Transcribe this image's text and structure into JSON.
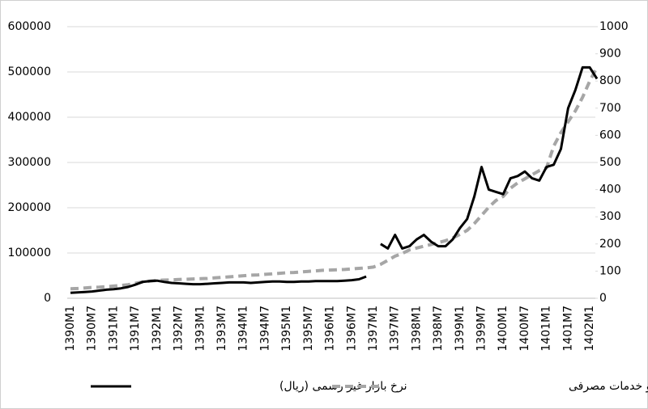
{
  "chart_data": {
    "type": "line",
    "categories": [
      "1390M1",
      null,
      null,
      "1390M7",
      null,
      null,
      "1391M1",
      null,
      null,
      "1391M7",
      null,
      null,
      "1392M1",
      null,
      null,
      "1392M7",
      null,
      null,
      "1393M1",
      null,
      null,
      "1393M7",
      null,
      null,
      "1394M1",
      null,
      null,
      "1394M7",
      null,
      null,
      "1395M1",
      null,
      null,
      "1395M7",
      null,
      null,
      "1396M1",
      null,
      null,
      "1396M7",
      null,
      null,
      "1397M1",
      null,
      null,
      "1397M7",
      null,
      null,
      "1398M1",
      null,
      null,
      "1398M7",
      null,
      null,
      "1399M1",
      null,
      null,
      "1399M7",
      null,
      null,
      "1400M1",
      null,
      null,
      "1400M7",
      null,
      null,
      "1401M1",
      null,
      null,
      "1401M7",
      null,
      null,
      "1402M1",
      null
    ],
    "series": [
      {
        "name": "نرخ بازار غیر رسمی (ریال)",
        "color": "#000000",
        "axis": "y",
        "values": [
          12000,
          13000,
          14000,
          15000,
          17000,
          19000,
          20000,
          22000,
          25000,
          30000,
          36000,
          38000,
          39000,
          36000,
          34000,
          33000,
          32000,
          31000,
          31000,
          32000,
          33000,
          34000,
          35000,
          35000,
          35000,
          34000,
          35000,
          36000,
          37000,
          37000,
          36000,
          36000,
          37000,
          37000,
          38000,
          38000,
          38000,
          38000,
          39000,
          40000,
          42000,
          48000,
          null,
          120000,
          110000,
          140000,
          110000,
          115000,
          130000,
          140000,
          125000,
          115000,
          115000,
          130000,
          155000,
          175000,
          225000,
          290000,
          240000,
          235000,
          230000,
          265000,
          270000,
          280000,
          265000,
          260000,
          290000,
          295000,
          330000,
          420000,
          460000,
          510000,
          510000,
          485000
        ]
      },
      {
        "name": "شاخص قیمت کالاها و خدمات مصرفی",
        "color": "#a6a6a6",
        "axis": "y2",
        "dashed": true,
        "values": [
          35,
          36,
          38,
          40,
          41,
          43,
          45,
          47,
          50,
          55,
          60,
          63,
          66,
          67,
          68,
          69,
          70,
          71,
          72,
          73,
          75,
          77,
          79,
          81,
          83,
          85,
          86,
          88,
          90,
          92,
          94,
          95,
          97,
          99,
          101,
          103,
          104,
          105,
          106,
          108,
          110,
          112,
          115,
          125,
          140,
          155,
          165,
          178,
          185,
          192,
          198,
          205,
          212,
          222,
          235,
          250,
          275,
          305,
          335,
          360,
          375,
          405,
          425,
          440,
          455,
          470,
          480,
          560,
          610,
          650,
          690,
          740,
          800,
          850
        ]
      }
    ],
    "ylim": [
      0,
      600000
    ],
    "yticks": [
      0,
      100000,
      200000,
      300000,
      400000,
      500000,
      600000
    ],
    "y2lim": [
      0,
      1000
    ],
    "y2ticks": [
      0,
      100,
      200,
      300,
      400,
      500,
      600,
      700,
      800,
      900,
      1000
    ],
    "grid": true,
    "legend": "bottom"
  }
}
